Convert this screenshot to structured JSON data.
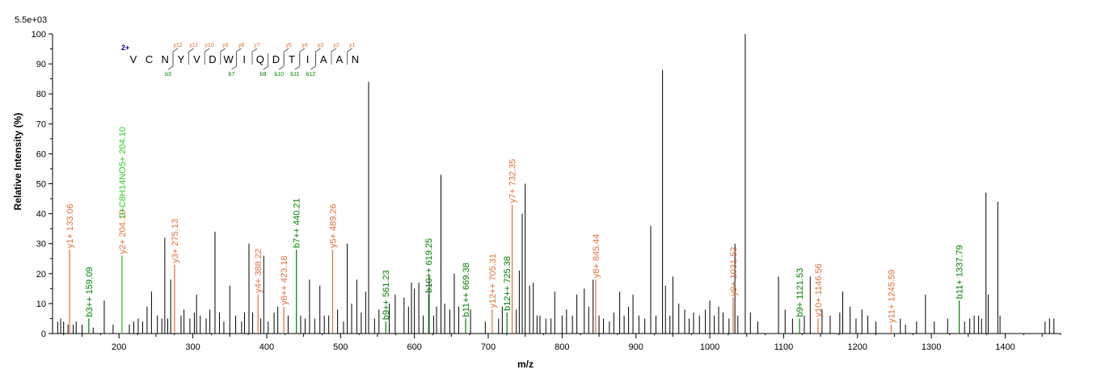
{
  "chart_data": {
    "type": "bar",
    "title": "",
    "xlabel": "m/z",
    "ylabel": "Relative   Intensity (%)",
    "max_intensity_label": "5.5e+03",
    "xlim": [
      110,
      1475
    ],
    "ylim": [
      0,
      100
    ],
    "xticks": [
      200,
      300,
      400,
      500,
      600,
      700,
      800,
      900,
      1000,
      1100,
      1200,
      1300,
      1400
    ],
    "yticks": [
      0,
      10,
      20,
      30,
      40,
      50,
      60,
      70,
      80,
      90,
      100
    ],
    "colors": {
      "y_ion": "#e0703a",
      "b_ion": "#008000",
      "other_ion": "#2ecc2e",
      "charge": "#00008b",
      "peak": "#000000"
    },
    "sequence": {
      "charge_label": "2+",
      "residues": [
        "V",
        "C",
        "N",
        "Y",
        "V",
        "D",
        "W",
        "I",
        "Q",
        "D",
        "T",
        "I",
        "A",
        "A",
        "N"
      ],
      "y_labels": [
        {
          "after": 3,
          "label": "y12"
        },
        {
          "after": 4,
          "label": "y11"
        },
        {
          "after": 5,
          "label": "y10"
        },
        {
          "after": 6,
          "label": "y9"
        },
        {
          "after": 7,
          "label": "y8"
        },
        {
          "after": 8,
          "label": "y7"
        },
        {
          "after": 10,
          "label": "y5"
        },
        {
          "after": 11,
          "label": "y4"
        },
        {
          "after": 12,
          "label": "y3"
        },
        {
          "after": 13,
          "label": "y2"
        },
        {
          "after": 14,
          "label": "y1"
        }
      ],
      "b_labels": [
        {
          "after": 3,
          "label": "b3"
        },
        {
          "after": 7,
          "label": "b7"
        },
        {
          "after": 9,
          "label": "b9"
        },
        {
          "after": 10,
          "label": "b10"
        },
        {
          "after": 11,
          "label": "b11"
        },
        {
          "after": 12,
          "label": "b12"
        }
      ]
    },
    "annotated_peaks": [
      {
        "mz": 133.06,
        "intensity": 28,
        "label": "y1+ 133.06",
        "ion": "y"
      },
      {
        "mz": 159.09,
        "intensity": 5,
        "label": "b3++ 159.09",
        "ion": "b"
      },
      {
        "mz": 204.1,
        "intensity": 26,
        "label": "y2+ 204.10",
        "ion": "y"
      },
      {
        "mz": 204.1,
        "intensity": 26,
        "label": "0+C8H14NO5+ 204.10",
        "ion": "other",
        "offset": 45
      },
      {
        "mz": 275.13,
        "intensity": 23,
        "label": "y3+ 275.13",
        "ion": "y"
      },
      {
        "mz": 388.22,
        "intensity": 13,
        "label": "y4+ 388.22",
        "ion": "y"
      },
      {
        "mz": 423.18,
        "intensity": 9,
        "label": "y8++ 423.18",
        "ion": "y"
      },
      {
        "mz": 440.21,
        "intensity": 28,
        "label": "b7++ 440.21",
        "ion": "b"
      },
      {
        "mz": 489.26,
        "intensity": 28,
        "label": "y5+ 489.26",
        "ion": "y"
      },
      {
        "mz": 561.23,
        "intensity": 4,
        "label": "b9++ 561.23",
        "ion": "b"
      },
      {
        "mz": 619.25,
        "intensity": 13,
        "label": "b10++ 619.25",
        "ion": "b"
      },
      {
        "mz": 669.38,
        "intensity": 5,
        "label": "b11++ 669.38",
        "ion": "b"
      },
      {
        "mz": 705.31,
        "intensity": 8,
        "label": "y12++ 705.31",
        "ion": "y"
      },
      {
        "mz": 725.38,
        "intensity": 7,
        "label": "b12++ 725.38",
        "ion": "b"
      },
      {
        "mz": 732.35,
        "intensity": 43,
        "label": "y7+ 732.35",
        "ion": "y"
      },
      {
        "mz": 845.44,
        "intensity": 18,
        "label": "y8+ 845.44",
        "ion": "y"
      },
      {
        "mz": 1031.52,
        "intensity": 12,
        "label": "y9+ 1031.52",
        "ion": "y"
      },
      {
        "mz": 1121.53,
        "intensity": 5,
        "label": "b9+ 1121.53",
        "ion": "b"
      },
      {
        "mz": 1146.56,
        "intensity": 5,
        "label": "y10+ 1146.56",
        "ion": "y"
      },
      {
        "mz": 1245.59,
        "intensity": 3,
        "label": "y11+ 1245.59",
        "ion": "y"
      },
      {
        "mz": 1337.79,
        "intensity": 11,
        "label": "b11+ 1337.79",
        "ion": "b"
      }
    ],
    "peaks": [
      [
        117,
        4
      ],
      [
        121,
        5
      ],
      [
        125,
        4
      ],
      [
        131,
        3
      ],
      [
        138,
        3
      ],
      [
        142,
        4
      ],
      [
        150,
        3
      ],
      [
        165,
        2
      ],
      [
        180,
        11
      ],
      [
        192,
        3
      ],
      [
        214,
        3
      ],
      [
        220,
        4
      ],
      [
        226,
        5
      ],
      [
        232,
        4
      ],
      [
        238,
        9
      ],
      [
        244,
        14
      ],
      [
        252,
        6
      ],
      [
        258,
        5
      ],
      [
        262,
        32
      ],
      [
        266,
        5
      ],
      [
        270,
        18
      ],
      [
        284,
        6
      ],
      [
        288,
        8
      ],
      [
        296,
        5
      ],
      [
        302,
        7
      ],
      [
        305,
        13
      ],
      [
        310,
        6
      ],
      [
        318,
        5
      ],
      [
        323,
        8
      ],
      [
        330,
        34
      ],
      [
        336,
        7
      ],
      [
        342,
        4
      ],
      [
        350,
        16
      ],
      [
        358,
        6
      ],
      [
        366,
        4
      ],
      [
        370,
        7
      ],
      [
        376,
        30
      ],
      [
        381,
        7
      ],
      [
        392,
        5
      ],
      [
        396,
        26
      ],
      [
        402,
        4
      ],
      [
        410,
        7
      ],
      [
        415,
        9
      ],
      [
        429,
        6
      ],
      [
        446,
        6
      ],
      [
        452,
        5
      ],
      [
        458,
        18
      ],
      [
        465,
        5
      ],
      [
        472,
        16
      ],
      [
        478,
        6
      ],
      [
        484,
        6
      ],
      [
        496,
        8
      ],
      [
        504,
        4
      ],
      [
        509,
        30
      ],
      [
        515,
        10
      ],
      [
        522,
        18
      ],
      [
        528,
        7
      ],
      [
        534,
        14
      ],
      [
        538,
        84
      ],
      [
        546,
        5
      ],
      [
        552,
        8
      ],
      [
        566,
        10
      ],
      [
        574,
        13
      ],
      [
        586,
        12
      ],
      [
        592,
        9
      ],
      [
        596,
        17
      ],
      [
        600,
        15
      ],
      [
        606,
        17
      ],
      [
        612,
        6
      ],
      [
        620,
        19
      ],
      [
        626,
        6
      ],
      [
        630,
        9
      ],
      [
        636,
        53
      ],
      [
        641,
        10
      ],
      [
        648,
        8
      ],
      [
        654,
        20
      ],
      [
        660,
        9
      ],
      [
        676,
        8
      ],
      [
        696,
        4
      ],
      [
        714,
        5
      ],
      [
        719,
        9
      ],
      [
        738,
        8
      ],
      [
        742,
        21
      ],
      [
        746,
        40
      ],
      [
        750,
        50
      ],
      [
        756,
        16
      ],
      [
        761,
        17
      ],
      [
        766,
        6
      ],
      [
        770,
        6
      ],
      [
        778,
        5
      ],
      [
        785,
        5
      ],
      [
        790,
        14
      ],
      [
        800,
        6
      ],
      [
        806,
        8
      ],
      [
        814,
        6
      ],
      [
        820,
        13
      ],
      [
        830,
        15
      ],
      [
        836,
        9
      ],
      [
        842,
        18
      ],
      [
        850,
        6
      ],
      [
        856,
        5
      ],
      [
        864,
        4
      ],
      [
        870,
        7
      ],
      [
        878,
        14
      ],
      [
        884,
        6
      ],
      [
        890,
        9
      ],
      [
        896,
        13
      ],
      [
        904,
        6
      ],
      [
        912,
        5
      ],
      [
        920,
        36
      ],
      [
        927,
        6
      ],
      [
        936,
        88
      ],
      [
        940,
        16
      ],
      [
        946,
        6
      ],
      [
        950,
        19
      ],
      [
        958,
        10
      ],
      [
        966,
        8
      ],
      [
        972,
        5
      ],
      [
        978,
        7
      ],
      [
        986,
        6
      ],
      [
        994,
        8
      ],
      [
        1000,
        11
      ],
      [
        1006,
        6
      ],
      [
        1012,
        9
      ],
      [
        1018,
        7
      ],
      [
        1026,
        5
      ],
      [
        1034,
        30
      ],
      [
        1038,
        6
      ],
      [
        1048,
        100
      ],
      [
        1055,
        7
      ],
      [
        1065,
        4
      ],
      [
        1093,
        19
      ],
      [
        1102,
        8
      ],
      [
        1112,
        5
      ],
      [
        1128,
        6
      ],
      [
        1136,
        19
      ],
      [
        1152,
        8
      ],
      [
        1163,
        6
      ],
      [
        1176,
        7
      ],
      [
        1180,
        14
      ],
      [
        1190,
        9
      ],
      [
        1198,
        5
      ],
      [
        1206,
        8
      ],
      [
        1214,
        6
      ],
      [
        1225,
        4
      ],
      [
        1258,
        5
      ],
      [
        1265,
        3
      ],
      [
        1280,
        4
      ],
      [
        1292,
        13
      ],
      [
        1304,
        4
      ],
      [
        1322,
        5
      ],
      [
        1345,
        4
      ],
      [
        1352,
        5
      ],
      [
        1358,
        6
      ],
      [
        1364,
        6
      ],
      [
        1368,
        5
      ],
      [
        1374,
        47
      ],
      [
        1377,
        13
      ],
      [
        1390,
        44
      ],
      [
        1393,
        6
      ],
      [
        1454,
        4
      ],
      [
        1460,
        5
      ],
      [
        1466,
        5
      ]
    ]
  }
}
